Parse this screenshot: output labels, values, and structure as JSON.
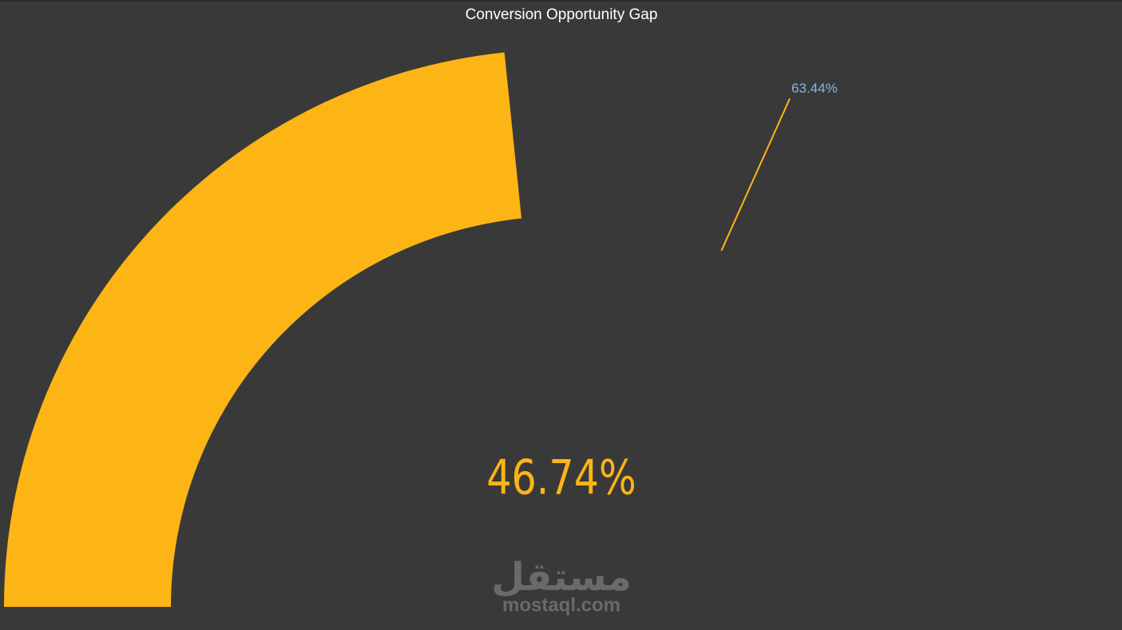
{
  "chart_data": {
    "type": "gauge",
    "title": "Conversion Opportunity Gap",
    "values": [
      46.74
    ],
    "value_labels": [
      "46.74%"
    ],
    "color": "#fdb515",
    "target": 63.44,
    "target_label": "63.44%",
    "target_color": "#fdb515",
    "ylim": [
      0,
      100
    ]
  },
  "watermark": {
    "logo": "مستقل",
    "site": "mostaql.com"
  }
}
